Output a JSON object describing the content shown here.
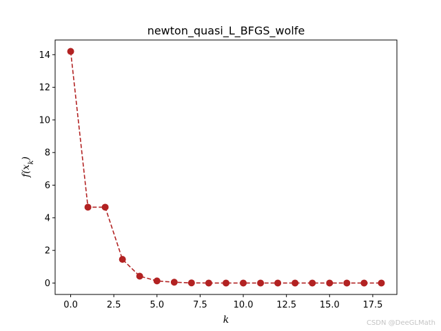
{
  "chart_data": {
    "type": "line",
    "title": "newton_quasi_L_BFGS_wolfe",
    "xlabel": "k",
    "ylabel": "f(x_k)",
    "xlim": [
      -0.9,
      18.9
    ],
    "ylim": [
      -0.7,
      14.9
    ],
    "xticks": [
      0,
      2.5,
      5,
      7.5,
      10,
      12.5,
      15,
      17.5
    ],
    "xtick_labels": [
      "0.0",
      "2.5",
      "5.0",
      "7.5",
      "10.0",
      "12.5",
      "15.0",
      "17.5"
    ],
    "yticks": [
      0,
      2,
      4,
      6,
      8,
      10,
      12,
      14
    ],
    "ytick_labels": [
      "0",
      "2",
      "4",
      "6",
      "8",
      "10",
      "12",
      "14"
    ],
    "grid": false,
    "series": [
      {
        "color": "#b22222",
        "line_style": "dashed",
        "marker": "circle",
        "x": [
          0,
          1,
          2,
          3,
          4,
          5,
          6,
          7,
          8,
          9,
          10,
          11,
          12,
          13,
          14,
          15,
          16,
          17,
          18
        ],
        "y": [
          14.2,
          4.65,
          4.65,
          1.45,
          0.42,
          0.13,
          0.05,
          0.01,
          0.0,
          0.0,
          0.0,
          0.0,
          0.0,
          0.0,
          0.0,
          0.0,
          0.0,
          0.0,
          0.0
        ]
      }
    ]
  },
  "watermark": "CSDN @DeeGLMath"
}
